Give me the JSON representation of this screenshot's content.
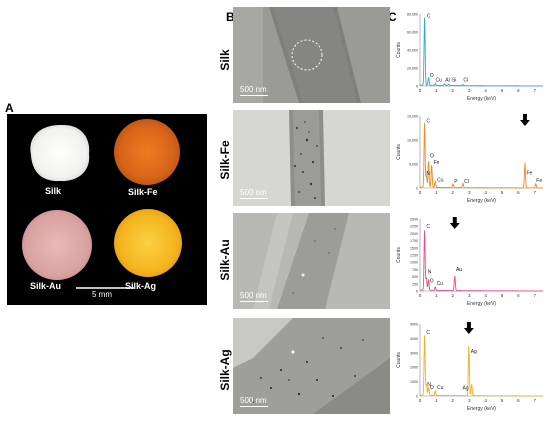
{
  "panels": {
    "a": "A",
    "b": "B",
    "c": "C"
  },
  "photo": {
    "labels": [
      "Silk",
      "Silk-Fe",
      "Silk-Au",
      "Silk-Ag"
    ],
    "scale_label": "5 mm"
  },
  "tem": {
    "scale_label": "500 nm",
    "rows": [
      "Silk",
      "Silk-Fe",
      "Silk-Au",
      "Silk-Ag"
    ]
  },
  "colors": {
    "silk": "#29a9dc",
    "fe": "#f08a1e",
    "au": "#e64c8a",
    "ag": "#f2b01e"
  },
  "chart_data": [
    {
      "type": "line",
      "ylabel": "Counts",
      "xlabel": "Energy (keV)",
      "xlim": [
        0,
        7.5
      ],
      "ylim": [
        0,
        80000
      ],
      "yticks": [
        "0",
        "20,000",
        "40,000",
        "60,000",
        "80,000"
      ],
      "xticks": [
        "0",
        "1",
        "2",
        "3",
        "4",
        "5",
        "6",
        "7"
      ],
      "peaks": [
        {
          "x": 0.28,
          "y": 76000
        },
        {
          "x": 0.52,
          "y": 9000
        },
        {
          "x": 0.93,
          "y": 2000
        },
        {
          "x": 1.49,
          "y": 2000
        },
        {
          "x": 1.74,
          "y": 1500
        },
        {
          "x": 2.62,
          "y": 1200
        }
      ],
      "annotations": [
        {
          "text": "C",
          "x": 0.33,
          "y": 76000
        },
        {
          "text": "O",
          "x": 0.5,
          "y": 10000
        },
        {
          "text": "Cu",
          "x": 0.85,
          "y": 5000
        },
        {
          "text": "Al",
          "x": 1.45,
          "y": 5000
        },
        {
          "text": "Si",
          "x": 1.85,
          "y": 5000
        },
        {
          "text": "Cl",
          "x": 2.55,
          "y": 5000
        }
      ]
    },
    {
      "type": "line",
      "ylabel": "Counts",
      "xlabel": "Energy (keV)",
      "xlim": [
        0,
        7.5
      ],
      "ylim": [
        0,
        15000
      ],
      "yticks": [
        "0",
        "5,000",
        "10,000",
        "15,000"
      ],
      "xticks": [
        "0",
        "1",
        "2",
        "3",
        "4",
        "5",
        "6",
        "7"
      ],
      "peaks": [
        {
          "x": 0.28,
          "y": 13500
        },
        {
          "x": 0.39,
          "y": 2500
        },
        {
          "x": 0.52,
          "y": 5500
        },
        {
          "x": 0.71,
          "y": 4800
        },
        {
          "x": 0.93,
          "y": 1300
        },
        {
          "x": 2.01,
          "y": 800
        },
        {
          "x": 2.62,
          "y": 900
        },
        {
          "x": 6.4,
          "y": 5200
        },
        {
          "x": 7.06,
          "y": 900
        }
      ],
      "annotations": [
        {
          "text": "C",
          "x": 0.3,
          "y": 13600
        },
        {
          "text": "N",
          "x": 0.3,
          "y": 2700
        },
        {
          "text": "O",
          "x": 0.52,
          "y": 6400
        },
        {
          "text": "Fe",
          "x": 0.74,
          "y": 5000
        },
        {
          "text": "Cu",
          "x": 0.95,
          "y": 1400
        },
        {
          "text": "P",
          "x": 2.0,
          "y": 1000
        },
        {
          "text": "Cl",
          "x": 2.6,
          "y": 1000
        },
        {
          "text": "Fe",
          "x": 6.4,
          "y": 2800
        },
        {
          "text": "Fe",
          "x": 7.0,
          "y": 1300
        }
      ],
      "arrow_x": 6.4
    },
    {
      "type": "line",
      "ylabel": "Counts",
      "xlabel": "Energy (keV)",
      "xlim": [
        0,
        7.5
      ],
      "ylim": [
        0,
        2500
      ],
      "yticks": [
        "0",
        "250",
        "500",
        "750",
        "1000",
        "1250",
        "1500",
        "1750",
        "2000",
        "2250",
        "2500"
      ],
      "xticks": [
        "0",
        "1",
        "2",
        "3",
        "4",
        "5",
        "6",
        "7"
      ],
      "peaks": [
        {
          "x": 0.28,
          "y": 2100
        },
        {
          "x": 0.39,
          "y": 450
        },
        {
          "x": 0.52,
          "y": 380
        },
        {
          "x": 0.93,
          "y": 120
        },
        {
          "x": 2.12,
          "y": 520
        }
      ],
      "annotations": [
        {
          "text": "C",
          "x": 0.3,
          "y": 2180
        },
        {
          "text": "N",
          "x": 0.38,
          "y": 600
        },
        {
          "text": "O",
          "x": 0.5,
          "y": 300
        },
        {
          "text": "Cu",
          "x": 0.92,
          "y": 200
        },
        {
          "text": "Au",
          "x": 2.1,
          "y": 700
        }
      ],
      "arrow_x": 2.12
    },
    {
      "type": "line",
      "ylabel": "Counts",
      "xlabel": "Energy (keV)",
      "xlim": [
        0,
        7.5
      ],
      "ylim": [
        0,
        5000
      ],
      "yticks": [
        "0",
        "1000",
        "2000",
        "3000",
        "4000",
        "5000"
      ],
      "xticks": [
        "0",
        "1",
        "2",
        "3",
        "4",
        "5",
        "6",
        "7"
      ],
      "peaks": [
        {
          "x": 0.28,
          "y": 4200
        },
        {
          "x": 0.39,
          "y": 800
        },
        {
          "x": 0.52,
          "y": 600
        },
        {
          "x": 0.93,
          "y": 300
        },
        {
          "x": 2.98,
          "y": 3500
        },
        {
          "x": 3.15,
          "y": 800
        }
      ],
      "annotations": [
        {
          "text": "C",
          "x": 0.3,
          "y": 4300
        },
        {
          "text": "N",
          "x": 0.35,
          "y": 700
        },
        {
          "text": "O",
          "x": 0.52,
          "y": 500
        },
        {
          "text": "Cu",
          "x": 0.95,
          "y": 500
        },
        {
          "text": "Ag",
          "x": 3.0,
          "y": 3000
        },
        {
          "text": "Ag",
          "x": 2.5,
          "y": 450
        }
      ],
      "arrow_x": 2.98
    }
  ]
}
